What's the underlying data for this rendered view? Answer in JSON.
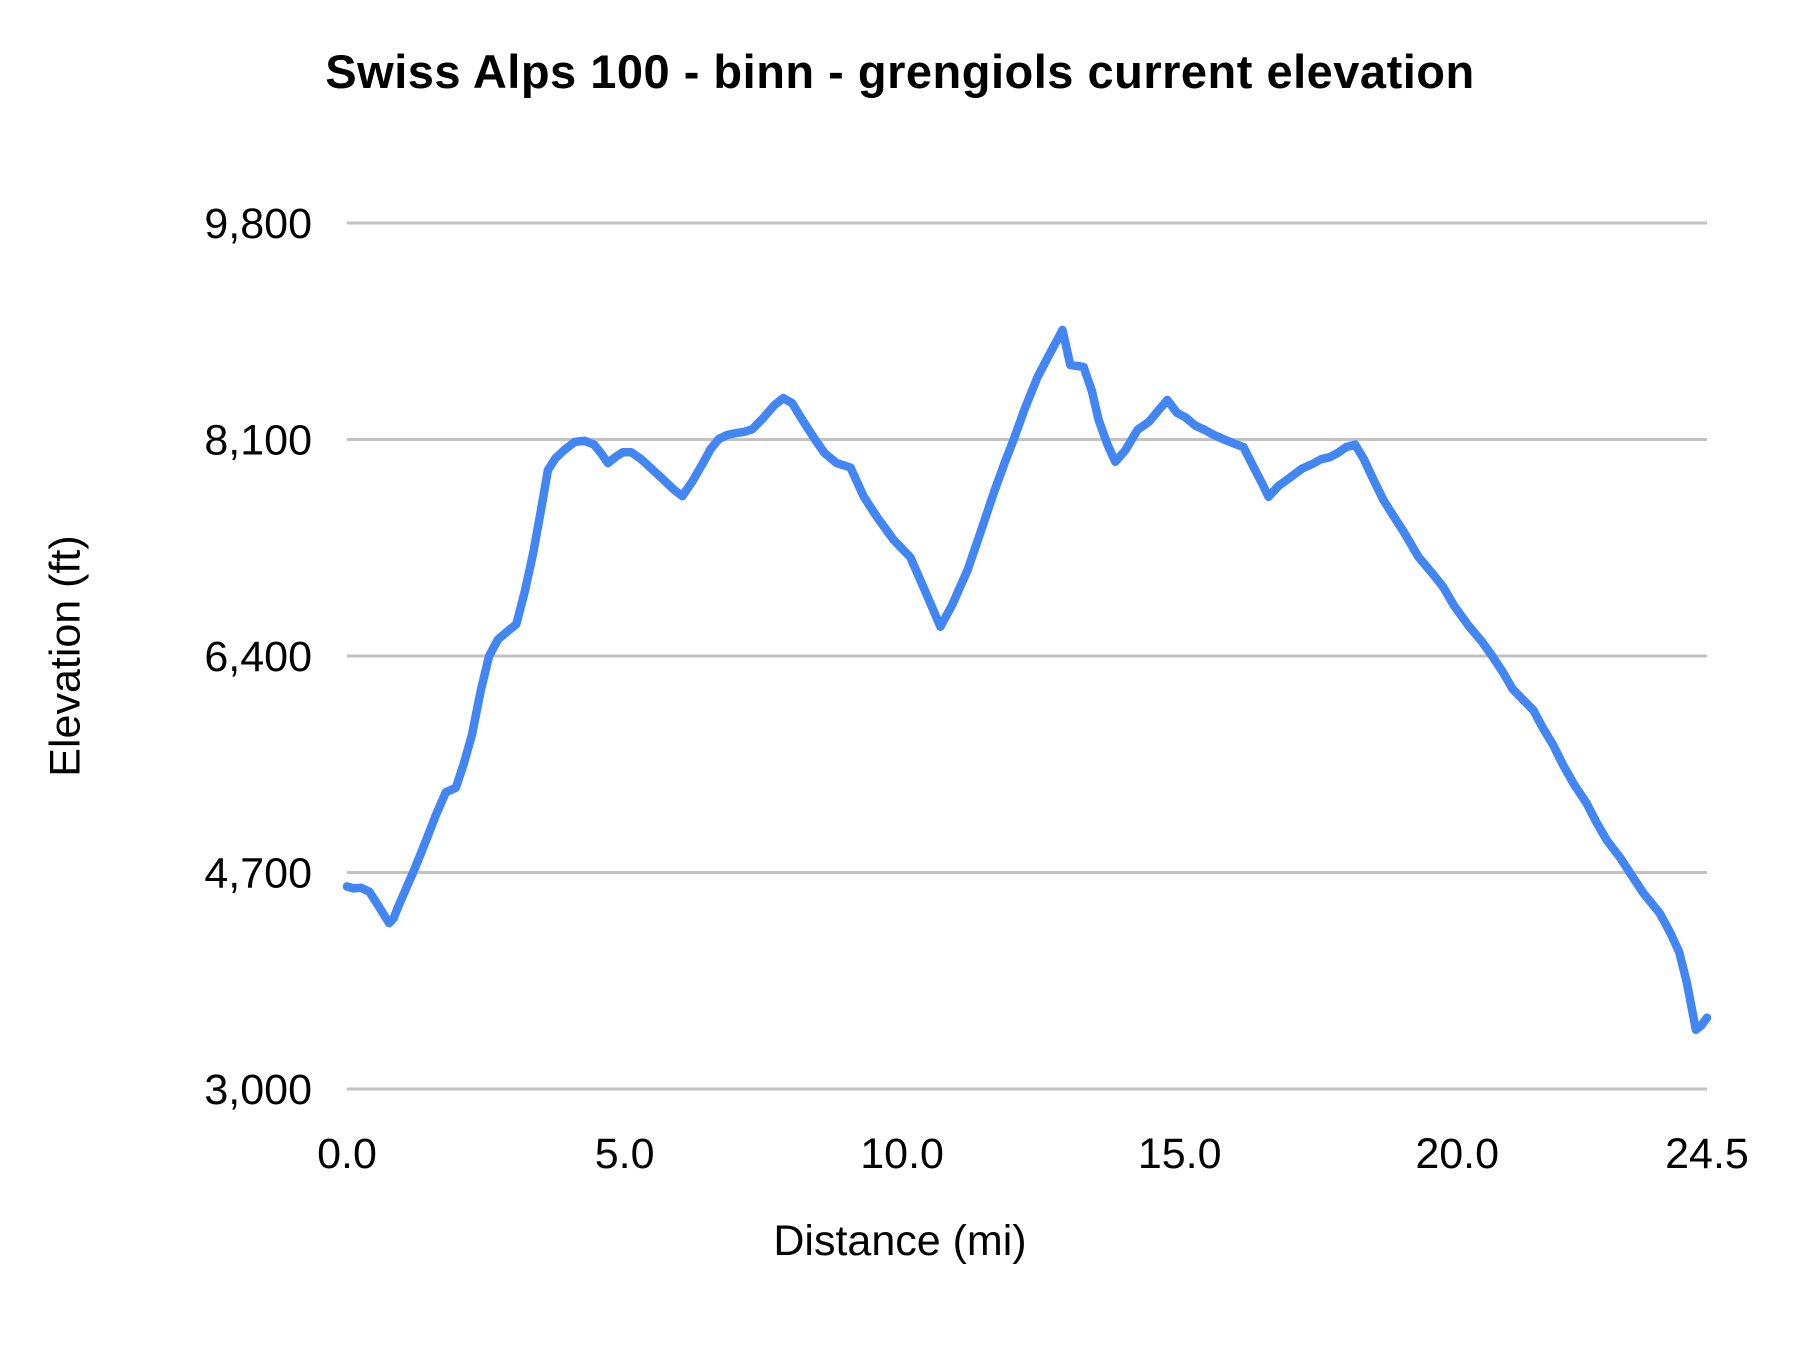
{
  "chart_data": {
    "type": "line",
    "title": "Swiss Alps 100 - binn - grengiols current elevation",
    "xlabel": "Distance (mi)",
    "ylabel": "Elevation (ft)",
    "xlim": [
      0,
      24.5
    ],
    "ylim": [
      3000,
      9800
    ],
    "xticks": [
      "0.0",
      "5.0",
      "10.0",
      "15.0",
      "20.0",
      "24.5"
    ],
    "xtick_values": [
      0,
      5,
      10,
      15,
      20,
      24.5
    ],
    "yticks": [
      "9,800",
      "8,100",
      "6,400",
      "4,700",
      "3,000"
    ],
    "ytick_values": [
      9800,
      8100,
      6400,
      4700,
      3000
    ],
    "grid": "horizontal-only",
    "gridline_color": "#c2c2c2",
    "legend_position": "none",
    "series": [
      {
        "name": "current elevation",
        "color": "#4285F4",
        "points": [
          [
            0,
            4590
          ],
          [
            0.12,
            4575
          ],
          [
            0.25,
            4580
          ],
          [
            0.4,
            4550
          ],
          [
            0.55,
            4450
          ],
          [
            0.67,
            4365
          ],
          [
            0.76,
            4303
          ],
          [
            0.84,
            4340
          ],
          [
            0.92,
            4430
          ],
          [
            1.05,
            4560
          ],
          [
            1.19,
            4700
          ],
          [
            1.35,
            4870
          ],
          [
            1.45,
            4980
          ],
          [
            1.6,
            5150
          ],
          [
            1.78,
            5330
          ],
          [
            1.96,
            5365
          ],
          [
            2.1,
            5550
          ],
          [
            2.25,
            5780
          ],
          [
            2.41,
            6130
          ],
          [
            2.56,
            6400
          ],
          [
            2.72,
            6530
          ],
          [
            2.88,
            6590
          ],
          [
            3.05,
            6650
          ],
          [
            3.2,
            6900
          ],
          [
            3.35,
            7200
          ],
          [
            3.5,
            7560
          ],
          [
            3.62,
            7860
          ],
          [
            3.75,
            7950
          ],
          [
            3.92,
            8020
          ],
          [
            4.1,
            8080
          ],
          [
            4.28,
            8090
          ],
          [
            4.45,
            8060
          ],
          [
            4.58,
            7990
          ],
          [
            4.7,
            7915
          ],
          [
            4.83,
            7960
          ],
          [
            4.97,
            8000
          ],
          [
            5.12,
            8000
          ],
          [
            5.3,
            7945
          ],
          [
            5.5,
            7865
          ],
          [
            5.7,
            7785
          ],
          [
            5.88,
            7710
          ],
          [
            6.04,
            7655
          ],
          [
            6.22,
            7770
          ],
          [
            6.4,
            7905
          ],
          [
            6.55,
            8025
          ],
          [
            6.7,
            8105
          ],
          [
            6.85,
            8135
          ],
          [
            7.0,
            8150
          ],
          [
            7.15,
            8160
          ],
          [
            7.3,
            8180
          ],
          [
            7.5,
            8270
          ],
          [
            7.7,
            8370
          ],
          [
            7.86,
            8425
          ],
          [
            8.02,
            8385
          ],
          [
            8.18,
            8270
          ],
          [
            8.43,
            8100
          ],
          [
            8.6,
            7995
          ],
          [
            8.82,
            7915
          ],
          [
            9.07,
            7880
          ],
          [
            9.31,
            7650
          ],
          [
            9.55,
            7490
          ],
          [
            9.85,
            7310
          ],
          [
            10.15,
            7175
          ],
          [
            10.46,
            6865
          ],
          [
            10.69,
            6630
          ],
          [
            10.9,
            6800
          ],
          [
            11.18,
            7075
          ],
          [
            11.45,
            7420
          ],
          [
            11.65,
            7680
          ],
          [
            11.85,
            7920
          ],
          [
            12.01,
            8100
          ],
          [
            12.2,
            8330
          ],
          [
            12.44,
            8590
          ],
          [
            12.62,
            8740
          ],
          [
            12.78,
            8870
          ],
          [
            12.89,
            8960
          ],
          [
            13.03,
            8685
          ],
          [
            13.27,
            8670
          ],
          [
            13.42,
            8480
          ],
          [
            13.54,
            8255
          ],
          [
            13.7,
            8060
          ],
          [
            13.84,
            7925
          ],
          [
            14.02,
            8015
          ],
          [
            14.24,
            8175
          ],
          [
            14.45,
            8240
          ],
          [
            14.62,
            8330
          ],
          [
            14.78,
            8410
          ],
          [
            14.95,
            8310
          ],
          [
            15.1,
            8275
          ],
          [
            15.28,
            8210
          ],
          [
            15.45,
            8175
          ],
          [
            15.62,
            8135
          ],
          [
            15.8,
            8100
          ],
          [
            15.97,
            8070
          ],
          [
            16.15,
            8040
          ],
          [
            16.33,
            7885
          ],
          [
            16.48,
            7760
          ],
          [
            16.6,
            7650
          ],
          [
            16.78,
            7735
          ],
          [
            17.0,
            7805
          ],
          [
            17.2,
            7870
          ],
          [
            17.38,
            7905
          ],
          [
            17.55,
            7945
          ],
          [
            17.7,
            7960
          ],
          [
            17.85,
            7995
          ],
          [
            18.0,
            8040
          ],
          [
            18.16,
            8060
          ],
          [
            18.32,
            7945
          ],
          [
            18.48,
            7795
          ],
          [
            18.67,
            7625
          ],
          [
            18.85,
            7500
          ],
          [
            19.05,
            7365
          ],
          [
            19.3,
            7180
          ],
          [
            19.55,
            7050
          ],
          [
            19.75,
            6940
          ],
          [
            19.95,
            6790
          ],
          [
            20.2,
            6640
          ],
          [
            20.45,
            6510
          ],
          [
            20.63,
            6400
          ],
          [
            20.82,
            6275
          ],
          [
            21.0,
            6140
          ],
          [
            21.2,
            6050
          ],
          [
            21.37,
            5975
          ],
          [
            21.55,
            5830
          ],
          [
            21.73,
            5700
          ],
          [
            21.9,
            5550
          ],
          [
            22.1,
            5395
          ],
          [
            22.33,
            5245
          ],
          [
            22.5,
            5100
          ],
          [
            22.7,
            4950
          ],
          [
            22.93,
            4820
          ],
          [
            23.11,
            4700
          ],
          [
            23.35,
            4540
          ],
          [
            23.65,
            4380
          ],
          [
            23.84,
            4225
          ],
          [
            24.0,
            4075
          ],
          [
            24.14,
            3830
          ],
          [
            24.22,
            3645
          ],
          [
            24.3,
            3465
          ],
          [
            24.4,
            3500
          ],
          [
            24.5,
            3560
          ]
        ]
      }
    ]
  }
}
